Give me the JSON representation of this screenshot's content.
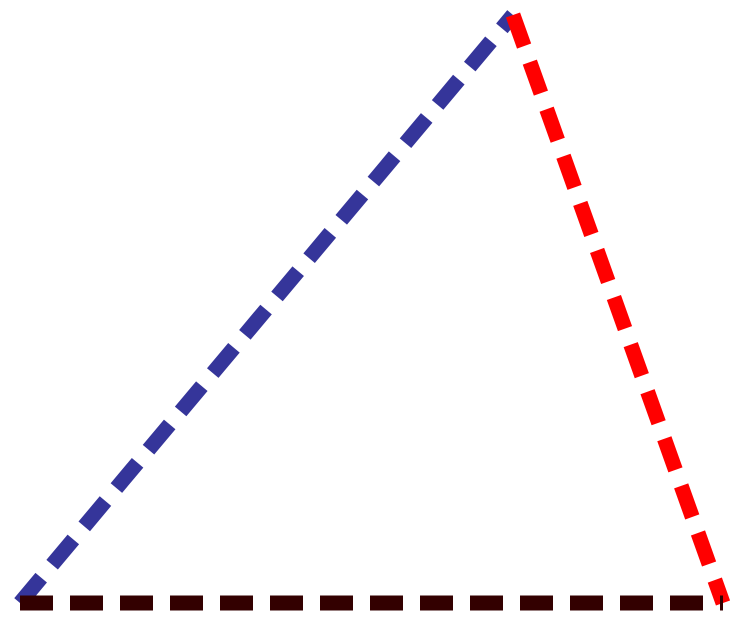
{
  "diagram": {
    "shape": "triangle",
    "edges": [
      {
        "id": "left-edge",
        "color": "#35359a",
        "style": "dashed"
      },
      {
        "id": "right-edge",
        "color": "#ff0000",
        "style": "dashed"
      },
      {
        "id": "base-edge",
        "color": "#330000",
        "style": "dashed"
      }
    ]
  }
}
